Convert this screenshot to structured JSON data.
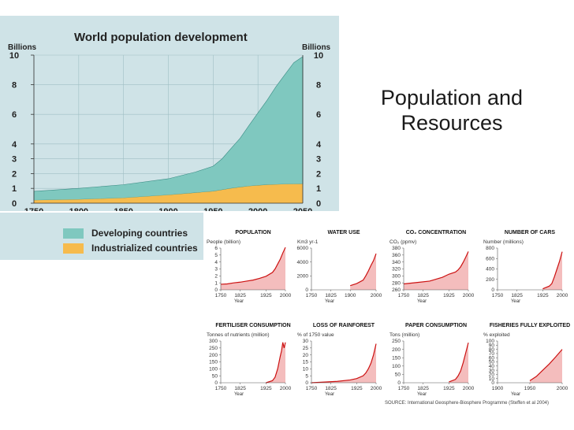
{
  "slide": {
    "title_line1": "Population and",
    "title_line2": "Resources"
  },
  "colors": {
    "teal": "#7fc8bf",
    "orange": "#f6bb4d",
    "main_bg": "#cfe3e7",
    "small_fill": "#f4bdbd",
    "small_line": "#cc1111"
  },
  "legend": {
    "developing": "Developing countries",
    "industrialized": "Industrialized countries"
  },
  "source": "SOURCE:  International Geosphere-Biosphere Programme (Steffen et al 2004)",
  "chart_data": [
    {
      "type": "area",
      "title": "World population development",
      "ylabel_left": "Billions",
      "ylabel_right": "Billions",
      "x": [
        1750,
        1800,
        1850,
        1900,
        1930,
        1950,
        1960,
        1970,
        1980,
        1990,
        2000,
        2010,
        2020,
        2030,
        2040,
        2050
      ],
      "series": [
        {
          "name": "Industrialized countries",
          "values": [
            0.2,
            0.25,
            0.35,
            0.55,
            0.7,
            0.8,
            0.9,
            1.0,
            1.08,
            1.15,
            1.2,
            1.24,
            1.26,
            1.28,
            1.29,
            1.3
          ]
        },
        {
          "name": "Developing countries",
          "values": [
            0.6,
            0.75,
            0.9,
            1.1,
            1.4,
            1.7,
            2.1,
            2.7,
            3.3,
            4.1,
            4.9,
            5.7,
            6.6,
            7.4,
            8.2,
            8.6
          ]
        }
      ],
      "xticks": [
        "1750",
        "1800",
        "1850",
        "1900",
        "1950",
        "2000",
        "2050"
      ],
      "yticks_left": [
        "0",
        "1",
        "2",
        "3",
        "4",
        "6",
        "8",
        "10"
      ],
      "yticks_right": [
        "0",
        "1",
        "2",
        "3",
        "4",
        "6",
        "8",
        "10"
      ],
      "xlim": [
        1750,
        2050
      ],
      "ylim": [
        0,
        10
      ]
    },
    {
      "type": "area",
      "title": "POPULATION",
      "unit": "People (billion)",
      "x": [
        1750,
        1775,
        1800,
        1825,
        1850,
        1875,
        1900,
        1925,
        1950,
        1960,
        1970,
        1980,
        1990,
        2000
      ],
      "values": [
        0.8,
        0.85,
        1.0,
        1.1,
        1.25,
        1.4,
        1.65,
        1.95,
        2.5,
        3.0,
        3.7,
        4.4,
        5.3,
        6.1
      ],
      "xlim": [
        1750,
        2000
      ],
      "ylim": [
        0,
        6
      ],
      "yticks": [
        "0",
        "1",
        "2",
        "3",
        "4",
        "5",
        "6"
      ],
      "xticks": [
        "1750",
        "1825",
        "1925",
        "2000"
      ],
      "xlabel": "Year"
    },
    {
      "type": "area",
      "title": "WATER USE",
      "unit": "Km3 yr-1",
      "x": [
        1900,
        1925,
        1950,
        1960,
        1970,
        1980,
        1990,
        2000
      ],
      "values": [
        600,
        900,
        1400,
        2000,
        2700,
        3500,
        4200,
        5200
      ],
      "xlim": [
        1750,
        2000
      ],
      "ylim": [
        0,
        6000
      ],
      "yticks": [
        "0",
        "2000",
        "4000",
        "6000"
      ],
      "xticks": [
        "1750",
        "1825",
        "1900",
        "2000"
      ],
      "xlabel": "Year"
    },
    {
      "type": "area",
      "title": "CO₂ CONCENTRATION",
      "unit": "CO₂ (ppmv)",
      "x": [
        1750,
        1800,
        1850,
        1900,
        1925,
        1950,
        1960,
        1970,
        1980,
        1990,
        2000
      ],
      "values": [
        277,
        281,
        285,
        296,
        305,
        311,
        317,
        326,
        339,
        354,
        370
      ],
      "xlim": [
        1750,
        2000
      ],
      "ylim": [
        260,
        380
      ],
      "yticks": [
        "260",
        "280",
        "300",
        "320",
        "340",
        "360",
        "380"
      ],
      "xticks": [
        "1750",
        "1825",
        "1925",
        "2000"
      ],
      "xlabel": "Year"
    },
    {
      "type": "area",
      "title": "NUMBER OF CARS",
      "unit": "Number (millions)",
      "x": [
        1925,
        1950,
        1960,
        1970,
        1980,
        1990,
        2000
      ],
      "values": [
        20,
        70,
        120,
        250,
        400,
        550,
        730
      ],
      "xlim": [
        1750,
        2000
      ],
      "ylim": [
        0,
        800
      ],
      "yticks": [
        "0",
        "200",
        "400",
        "600",
        "800"
      ],
      "xticks": [
        "1750",
        "1825",
        "1925",
        "2000"
      ],
      "xlabel": "Year"
    },
    {
      "type": "area",
      "title": "FERTILISER CONSUMPTION",
      "unit": "Tonnes of nutrients (million)",
      "x": [
        1925,
        1950,
        1960,
        1970,
        1980,
        1985,
        1990,
        1995,
        2000
      ],
      "values": [
        0,
        15,
        40,
        100,
        190,
        230,
        290,
        250,
        290
      ],
      "xlim": [
        1750,
        2000
      ],
      "ylim": [
        0,
        300
      ],
      "yticks": [
        "0",
        "50",
        "100",
        "150",
        "200",
        "250",
        "300"
      ],
      "xticks": [
        "1750",
        "1825",
        "1925",
        "2000"
      ],
      "xlabel": "Year"
    },
    {
      "type": "area",
      "title": "LOSS OF RAINFOREST",
      "unit": "% of 1750 value",
      "x": [
        1750,
        1800,
        1850,
        1900,
        1925,
        1950,
        1960,
        1970,
        1980,
        1990,
        2000
      ],
      "values": [
        0,
        0.5,
        1,
        2,
        3,
        5,
        7,
        10,
        14,
        20,
        28
      ],
      "xlim": [
        1750,
        2000
      ],
      "ylim": [
        0,
        30
      ],
      "yticks": [
        "0",
        "5",
        "10",
        "15",
        "20",
        "25",
        "30"
      ],
      "xticks": [
        "1750",
        "1825",
        "1925",
        "2000"
      ],
      "xlabel": "Year"
    },
    {
      "type": "area",
      "title": "PAPER CONSUMPTION",
      "unit": "Tons (million)",
      "x": [
        1925,
        1950,
        1960,
        1970,
        1980,
        1990,
        2000
      ],
      "values": [
        5,
        20,
        40,
        70,
        120,
        180,
        240
      ],
      "xlim": [
        1750,
        2000
      ],
      "ylim": [
        0,
        250
      ],
      "yticks": [
        "0",
        "50",
        "100",
        "150",
        "200",
        "250"
      ],
      "xticks": [
        "1750",
        "1825",
        "1925",
        "2000"
      ],
      "xlabel": "Year"
    },
    {
      "type": "area",
      "title": "FISHERIES FULLY EXPLOITED",
      "unit": "% exploited",
      "x": [
        1950,
        1960,
        1970,
        1980,
        1990,
        2000
      ],
      "values": [
        5,
        15,
        30,
        45,
        62,
        80
      ],
      "xlim": [
        1900,
        2000
      ],
      "ylim": [
        0,
        100
      ],
      "yticks": [
        "0",
        "10",
        "20",
        "30",
        "40",
        "50",
        "60",
        "70",
        "80",
        "90",
        "100"
      ],
      "xticks": [
        "1900",
        "1950",
        "2000"
      ],
      "xlabel": "Year"
    }
  ]
}
